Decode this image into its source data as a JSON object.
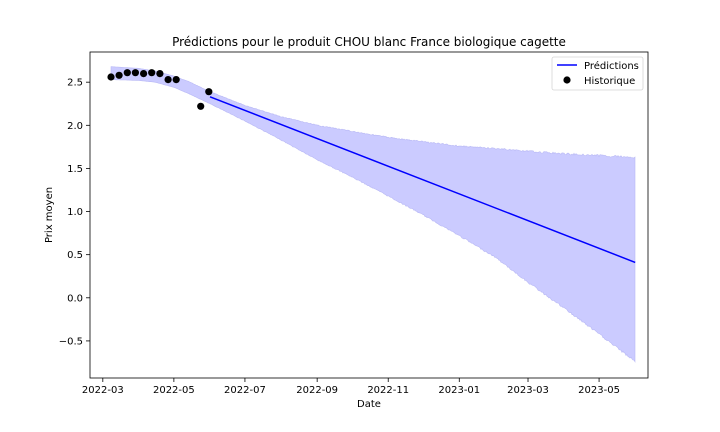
{
  "chart_data": {
    "type": "line",
    "title": "Prédictions pour le produit CHOU blanc France biologique cagette",
    "xlabel": "Date",
    "ylabel": "Prix moyen",
    "xlim": [
      "2022-02-18",
      "2023-06-12"
    ],
    "ylim": [
      -0.93,
      2.85
    ],
    "x_ticks": [
      "2022-03",
      "2022-05",
      "2022-07",
      "2022-09",
      "2022-11",
      "2023-01",
      "2023-03",
      "2023-05"
    ],
    "y_ticks": [
      -0.5,
      0.0,
      0.5,
      1.0,
      1.5,
      2.0,
      2.5
    ],
    "grid": false,
    "legend_position": "top-right",
    "colors": {
      "prediction_line": "#0000ff",
      "band_fill": "#cbcbff",
      "band_edge": "#b8b8f5",
      "history_points": "#000000"
    },
    "series": [
      {
        "name": "Prédictions",
        "kind": "line",
        "x": [
          "2022-06-01",
          "2023-06-01"
        ],
        "y": [
          2.33,
          0.41
        ]
      },
      {
        "name": "Historique",
        "kind": "scatter",
        "x": [
          "2022-03-08",
          "2022-03-15",
          "2022-03-22",
          "2022-03-29",
          "2022-04-05",
          "2022-04-12",
          "2022-04-19",
          "2022-04-26",
          "2022-05-03",
          "2022-05-24",
          "2022-05-31"
        ],
        "y": [
          2.56,
          2.58,
          2.61,
          2.61,
          2.6,
          2.61,
          2.6,
          2.53,
          2.53,
          2.22,
          2.39
        ]
      }
    ],
    "confidence_band": {
      "x": [
        "2022-03-08",
        "2022-04-01",
        "2022-04-15",
        "2022-05-01",
        "2022-05-15",
        "2022-06-01",
        "2022-07-01",
        "2022-08-01",
        "2022-09-01",
        "2022-10-01",
        "2022-11-01",
        "2022-12-01",
        "2023-01-01",
        "2023-02-01",
        "2023-03-01",
        "2023-04-01",
        "2023-05-01",
        "2023-06-01"
      ],
      "upper": [
        2.68,
        2.66,
        2.63,
        2.57,
        2.5,
        2.39,
        2.23,
        2.1,
        2.0,
        1.93,
        1.86,
        1.81,
        1.76,
        1.73,
        1.7,
        1.67,
        1.65,
        1.63
      ],
      "lower": [
        2.53,
        2.52,
        2.5,
        2.44,
        2.36,
        2.25,
        2.05,
        1.83,
        1.6,
        1.4,
        1.18,
        0.96,
        0.72,
        0.47,
        0.18,
        -0.12,
        -0.42,
        -0.74
      ]
    }
  }
}
